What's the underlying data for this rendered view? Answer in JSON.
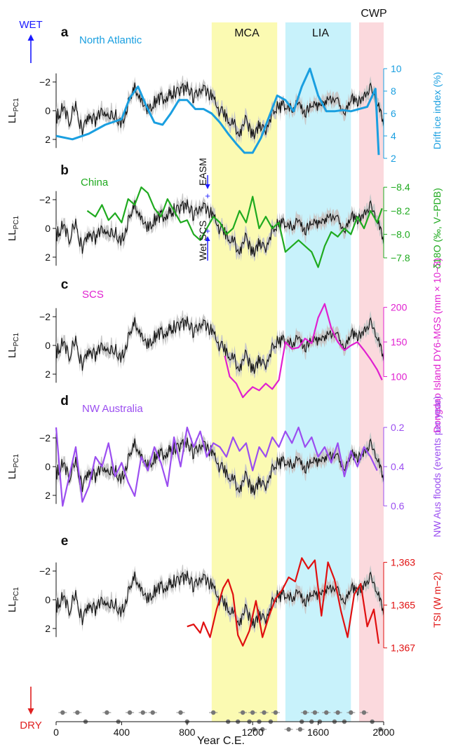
{
  "figure": {
    "top_left_label": "WET",
    "bottom_left_label": "DRY",
    "period_labels": {
      "mca": "MCA",
      "lia": "LIA",
      "cwp": "CWP"
    },
    "x_axis_title": "Year C.E.",
    "colors": {
      "mca": "#fbfab2",
      "lia": "#c8f2fb",
      "cwp": "#fbd9dd",
      "ll_line": "#111111",
      "ll_band": "#c8c8c8",
      "arrow": "#1a1aff",
      "dry_arrow": "#e02020"
    }
  },
  "chart_data": [
    {
      "type": "line",
      "panel": "a",
      "region_label": "North Atlantic",
      "left_axis": {
        "label": "LL_PC1",
        "ticks": [
          "−2",
          "0",
          "2"
        ],
        "reversed": true,
        "range": [
          -3.5,
          3
        ]
      },
      "right_axis": {
        "label": "Drift ice index (%)",
        "ticks": [
          "2",
          "4",
          "6",
          "8",
          "10"
        ],
        "range": [
          1,
          11.5
        ],
        "color": "#1a9fe0"
      },
      "xlim": [
        0,
        2000
      ],
      "series": [
        {
          "role": "LL_PC1 (black, grey band)",
          "x": [
            0,
            40,
            80,
            120,
            160,
            200,
            240,
            280,
            320,
            360,
            400,
            440,
            480,
            520,
            560,
            600,
            640,
            680,
            720,
            760,
            800,
            840,
            880,
            920,
            960,
            1000,
            1040,
            1080,
            1120,
            1160,
            1200,
            1240,
            1280,
            1320,
            1360,
            1400,
            1440,
            1480,
            1520,
            1560,
            1600,
            1640,
            1680,
            1720,
            1760,
            1800,
            1840,
            1880,
            1920,
            1960,
            2000
          ],
          "y": [
            0.5,
            -0.2,
            0.6,
            -0.3,
            1.5,
            0.2,
            0.8,
            -0.1,
            0.6,
            0.2,
            0.9,
            -0.5,
            -1.6,
            -0.8,
            0.0,
            -0.6,
            -0.9,
            -1.0,
            -1.3,
            -1.3,
            -1.6,
            -0.8,
            -1.5,
            -1.2,
            -0.9,
            0.1,
            0.4,
            0.8,
            1.9,
            0.6,
            1.9,
            1.0,
            1.4,
            0.0,
            -0.3,
            -0.4,
            -0.1,
            -0.5,
            0.2,
            -0.5,
            -0.3,
            -0.6,
            -0.8,
            -0.6,
            0.3,
            -0.9,
            -0.6,
            -1.0,
            -1.6,
            -0.6,
            0.8
          ]
        },
        {
          "name": "North Atlantic",
          "x": [
            0,
            100,
            200,
            300,
            400,
            450,
            500,
            550,
            600,
            650,
            700,
            750,
            800,
            850,
            900,
            950,
            1000,
            1050,
            1100,
            1150,
            1200,
            1250,
            1300,
            1350,
            1400,
            1450,
            1500,
            1550,
            1600,
            1650,
            1700,
            1750,
            1800,
            1850,
            1900,
            1950,
            1970
          ],
          "y": [
            4.0,
            3.7,
            4.2,
            5.0,
            5.5,
            7.4,
            8.4,
            6.7,
            5.2,
            5.0,
            6.0,
            7.2,
            7.2,
            6.4,
            6.4,
            6.0,
            5.2,
            4.2,
            3.3,
            2.5,
            2.5,
            3.8,
            5.7,
            7.6,
            7.2,
            6.2,
            8.4,
            10.0,
            7.6,
            6.2,
            6.2,
            6.3,
            6.2,
            6.4,
            6.6,
            8.2,
            2.3
          ]
        }
      ]
    },
    {
      "type": "line",
      "panel": "b",
      "region_label": "China",
      "annotation": "EASM",
      "left_axis": {
        "label": "LL_PC1",
        "ticks": [
          "−2",
          "0",
          "2"
        ],
        "reversed": true,
        "range": [
          -3.5,
          3
        ]
      },
      "right_axis": {
        "label": "δ18O (‰, V−PDB)",
        "ticks": [
          "−7.8",
          "−8.0",
          "−8.2",
          "−8.4"
        ],
        "range": [
          -8.55,
          -7.55
        ],
        "reversed": true,
        "color": "#1faa1f"
      },
      "xlim": [
        0,
        2000
      ],
      "series": [
        {
          "name": "China",
          "x": [
            190,
            240,
            280,
            320,
            360,
            400,
            440,
            480,
            520,
            560,
            600,
            640,
            680,
            720,
            760,
            800,
            840,
            880,
            920,
            960,
            1000,
            1040,
            1080,
            1120,
            1160,
            1200,
            1240,
            1280,
            1320,
            1360,
            1400,
            1440,
            1480,
            1520,
            1560,
            1600,
            1640,
            1680,
            1720,
            1760,
            1800,
            1840,
            1880,
            1920,
            1960,
            1990
          ],
          "y": [
            -8.2,
            -8.15,
            -8.25,
            -8.12,
            -8.18,
            -8.1,
            -8.3,
            -8.25,
            -8.4,
            -8.35,
            -8.22,
            -8.15,
            -8.3,
            -8.2,
            -8.1,
            -8.12,
            -8.0,
            -7.95,
            -8.05,
            -8.15,
            -8.1,
            -8.0,
            -8.05,
            -8.2,
            -8.1,
            -8.32,
            -8.05,
            -8.15,
            -8.05,
            -8.1,
            -7.85,
            -7.9,
            -7.95,
            -7.9,
            -7.85,
            -7.72,
            -7.9,
            -8.02,
            -7.98,
            -8.05,
            -8.0,
            -8.15,
            -8.05,
            -8.2,
            -8.1,
            -8.22
          ]
        }
      ]
    },
    {
      "type": "line",
      "panel": "c",
      "region_label": "SCS",
      "annotation": "Wet SCS",
      "left_axis": {
        "label": "LL_PC1",
        "ticks": [
          "−2",
          "0",
          "2"
        ],
        "reversed": true,
        "range": [
          -3.5,
          3
        ]
      },
      "right_axis": {
        "label": "Dongdao Island DY6-MGS (mm × 10−3)",
        "ticks": [
          "200",
          "150",
          "100"
        ],
        "range": [
          60,
          230
        ],
        "color": "#e020d0"
      },
      "xlim": [
        0,
        2000
      ],
      "series": [
        {
          "name": "SCS",
          "x": [
            1030,
            1060,
            1100,
            1140,
            1170,
            1200,
            1240,
            1280,
            1320,
            1360,
            1400,
            1440,
            1480,
            1520,
            1560,
            1600,
            1640,
            1680,
            1720,
            1760,
            1800,
            1840,
            1880,
            1920,
            1960,
            1990
          ],
          "y": [
            130,
            100,
            90,
            70,
            78,
            85,
            80,
            90,
            82,
            95,
            150,
            140,
            142,
            155,
            148,
            185,
            205,
            170,
            150,
            138,
            145,
            150,
            138,
            125,
            110,
            95
          ]
        }
      ]
    },
    {
      "type": "line",
      "panel": "d",
      "region_label": "NW Australia",
      "left_axis": {
        "label": "LL_PC1",
        "ticks": [
          "−2",
          "0",
          "2"
        ],
        "reversed": true,
        "range": [
          -3.5,
          3
        ]
      },
      "right_axis": {
        "label": "NW Aus floods (events per year)",
        "ticks": [
          "0.2",
          "0.4",
          "0.6"
        ],
        "range": [
          0.1,
          0.7
        ],
        "reversed": true,
        "color": "#9b4ef0"
      },
      "xlim": [
        0,
        2000
      ],
      "series": [
        {
          "name": "NW Australia",
          "x": [
            0,
            40,
            80,
            120,
            160,
            200,
            240,
            280,
            320,
            360,
            400,
            440,
            480,
            520,
            560,
            600,
            640,
            680,
            720,
            760,
            800,
            840,
            880,
            920,
            960,
            1000,
            1040,
            1080,
            1120,
            1160,
            1200,
            1240,
            1280,
            1320,
            1360,
            1400,
            1440,
            1480,
            1520,
            1560,
            1600,
            1640,
            1680,
            1720,
            1760,
            1800,
            1840,
            1880,
            1920,
            1960
          ],
          "y": [
            0.2,
            0.6,
            0.45,
            0.3,
            0.58,
            0.5,
            0.35,
            0.4,
            0.28,
            0.45,
            0.38,
            0.48,
            0.55,
            0.35,
            0.42,
            0.3,
            0.38,
            0.5,
            0.25,
            0.4,
            0.2,
            0.3,
            0.22,
            0.35,
            0.28,
            0.3,
            0.35,
            0.25,
            0.32,
            0.28,
            0.42,
            0.3,
            0.35,
            0.25,
            0.3,
            0.22,
            0.28,
            0.2,
            0.3,
            0.25,
            0.35,
            0.3,
            0.38,
            0.28,
            0.45,
            0.32,
            0.4,
            0.3,
            0.35,
            0.42
          ]
        }
      ]
    },
    {
      "type": "line",
      "panel": "e",
      "left_axis": {
        "label": "LL_PC1",
        "ticks": [
          "−2",
          "0",
          "2"
        ],
        "reversed": true,
        "range": [
          -3.5,
          3
        ]
      },
      "right_axis": {
        "label": "TSI (W m−2)",
        "ticks": [
          "1,363",
          "1,365",
          "1,367"
        ],
        "range": [
          1362,
          1367.5
        ],
        "reversed": true,
        "color": "#e01010"
      },
      "xlim": [
        0,
        2000
      ],
      "xticks": [
        "0",
        "400",
        "800",
        "1200",
        "1600",
        "2000"
      ],
      "xlabel": "Year C.E.",
      "series": [
        {
          "name": "TSI",
          "x": [
            800,
            840,
            880,
            900,
            940,
            980,
            1020,
            1050,
            1080,
            1110,
            1140,
            1180,
            1220,
            1260,
            1300,
            1340,
            1380,
            1420,
            1460,
            1500,
            1540,
            1580,
            1620,
            1660,
            1700,
            1740,
            1780,
            1820,
            1860,
            1900,
            1940,
            1970
          ],
          "y": [
            1366.0,
            1365.9,
            1366.3,
            1365.8,
            1366.5,
            1365.2,
            1364.2,
            1363.8,
            1364.5,
            1366.4,
            1366.9,
            1366.2,
            1364.8,
            1366.5,
            1365.5,
            1364.7,
            1364.3,
            1363.7,
            1363.9,
            1362.8,
            1363.3,
            1362.9,
            1365.5,
            1363.0,
            1363.8,
            1365.3,
            1366.5,
            1364.5,
            1364.0,
            1366.0,
            1365.2,
            1366.8
          ]
        }
      ]
    },
    {
      "type": "scatter",
      "panel": "dating points",
      "xlim": [
        0,
        2000
      ],
      "rows": [
        {
          "x": [
            40,
            130,
            310,
            450,
            530,
            590,
            760,
            960,
            1140,
            1200,
            1270,
            1340,
            1520,
            1580,
            1650,
            1720,
            1800,
            1880
          ]
        },
        {
          "x": [
            180,
            380,
            800,
            1050,
            1110,
            1180,
            1240,
            1310,
            1500,
            1560,
            1610,
            1700,
            1760,
            1930
          ]
        },
        {
          "x": [
            1210,
            1260,
            1420,
            1490,
            1980
          ]
        }
      ]
    }
  ]
}
